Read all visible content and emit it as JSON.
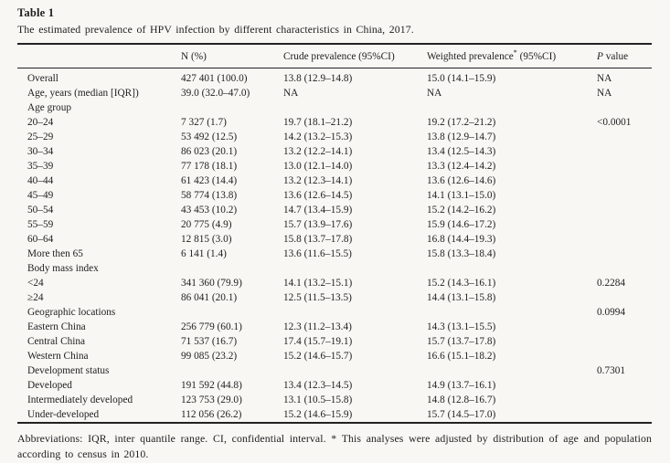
{
  "page": {
    "background": "#f8f7f4",
    "text_color": "#1e1e1e",
    "rule_color": "#222222"
  },
  "table": {
    "label": "Table 1",
    "caption": "The estimated prevalence of HPV infection by different characteristics in China, 2017.",
    "columns": [
      {
        "parts": [
          {
            "t": ""
          }
        ]
      },
      {
        "parts": [
          {
            "t": "N (%)"
          }
        ]
      },
      {
        "parts": [
          {
            "t": "Crude prevalence (95%CI)"
          }
        ]
      },
      {
        "parts": [
          {
            "t": "Weighted prevalence"
          },
          {
            "t": "*",
            "sup": true
          },
          {
            "t": " (95%CI)"
          }
        ]
      },
      {
        "parts": [
          {
            "t": "P",
            "italic": true
          },
          {
            "t": " value"
          }
        ]
      }
    ],
    "rows": [
      {
        "label": "Overall",
        "n": "427 401 (100.0)",
        "crude": "13.8 (12.9–14.8)",
        "weighted": "15.0 (14.1–15.9)",
        "p": "NA"
      },
      {
        "label": "Age, years (median [IQR])",
        "n": "39.0 (32.0–47.0)",
        "crude": "NA",
        "weighted": "NA",
        "p": "NA"
      },
      {
        "label": "Age group",
        "n": "",
        "crude": "",
        "weighted": "",
        "p": ""
      },
      {
        "label": "20–24",
        "n": "7 327 (1.7)",
        "crude": "19.7 (18.1–21.2)",
        "weighted": "19.2 (17.2–21.2)",
        "p": "<0.0001"
      },
      {
        "label": "25–29",
        "n": "53 492 (12.5)",
        "crude": "14.2 (13.2–15.3)",
        "weighted": "13.8 (12.9–14.7)",
        "p": ""
      },
      {
        "label": "30–34",
        "n": "86 023 (20.1)",
        "crude": "13.2 (12.2–14.1)",
        "weighted": "13.4 (12.5–14.3)",
        "p": ""
      },
      {
        "label": "35–39",
        "n": "77 178 (18.1)",
        "crude": "13.0 (12.1–14.0)",
        "weighted": "13.3 (12.4–14.2)",
        "p": ""
      },
      {
        "label": "40–44",
        "n": "61 423 (14.4)",
        "crude": "13.2 (12.3–14.1)",
        "weighted": "13.6 (12.6–14.6)",
        "p": ""
      },
      {
        "label": "45–49",
        "n": "58 774 (13.8)",
        "crude": "13.6 (12.6–14.5)",
        "weighted": "14.1 (13.1–15.0)",
        "p": ""
      },
      {
        "label": "50–54",
        "n": "43 453 (10.2)",
        "crude": "14.7 (13.4–15.9)",
        "weighted": "15.2 (14.2–16.2)",
        "p": ""
      },
      {
        "label": "55–59",
        "n": "20 775 (4.9)",
        "crude": "15.7 (13.9–17.6)",
        "weighted": "15.9 (14.6–17.2)",
        "p": ""
      },
      {
        "label": "60–64",
        "n": "12 815 (3.0)",
        "crude": "15.8 (13.7–17.8)",
        "weighted": "16.8 (14.4–19.3)",
        "p": ""
      },
      {
        "label": "More then 65",
        "n": "6 141 (1.4)",
        "crude": "13.6 (11.6–15.5)",
        "weighted": "15.8 (13.3–18.4)",
        "p": ""
      },
      {
        "label": "Body mass index",
        "n": "",
        "crude": "",
        "weighted": "",
        "p": ""
      },
      {
        "label": "<24",
        "n": "341 360 (79.9)",
        "crude": "14.1 (13.2–15.1)",
        "weighted": "15.2 (14.3–16.1)",
        "p": "0.2284"
      },
      {
        "label": "≥24",
        "n": "86 041 (20.1)",
        "crude": "12.5 (11.5–13.5)",
        "weighted": "14.4 (13.1–15.8)",
        "p": ""
      },
      {
        "label": "Geographic locations",
        "n": "",
        "crude": "",
        "weighted": "",
        "p": "0.0994"
      },
      {
        "label": "Eastern China",
        "n": "256 779 (60.1)",
        "crude": "12.3 (11.2–13.4)",
        "weighted": "14.3 (13.1–15.5)",
        "p": ""
      },
      {
        "label": "Central China",
        "n": "71 537 (16.7)",
        "crude": "17.4 (15.7–19.1)",
        "weighted": "15.7 (13.7–17.8)",
        "p": ""
      },
      {
        "label": "Western China",
        "n": "99 085 (23.2)",
        "crude": "15.2 (14.6–15.7)",
        "weighted": "16.6 (15.1–18.2)",
        "p": ""
      },
      {
        "label": "Development status",
        "n": "",
        "crude": "",
        "weighted": "",
        "p": "0.7301"
      },
      {
        "label": "Developed",
        "n": "191 592 (44.8)",
        "crude": "13.4 (12.3–14.5)",
        "weighted": "14.9 (13.7–16.1)",
        "p": ""
      },
      {
        "label": "Intermediately developed",
        "n": "123 753 (29.0)",
        "crude": "13.1 (10.5–15.8)",
        "weighted": "14.8 (12.8–16.7)",
        "p": ""
      },
      {
        "label": "Under-developed",
        "n": "112 056 (26.2)",
        "crude": "15.2 (14.6–15.9)",
        "weighted": "15.7 (14.5–17.0)",
        "p": ""
      }
    ],
    "footnote": "Abbreviations: IQR, inter quantile range. CI, confidential interval. * This analyses were adjusted by distribution of age and population according to census in 2010."
  }
}
